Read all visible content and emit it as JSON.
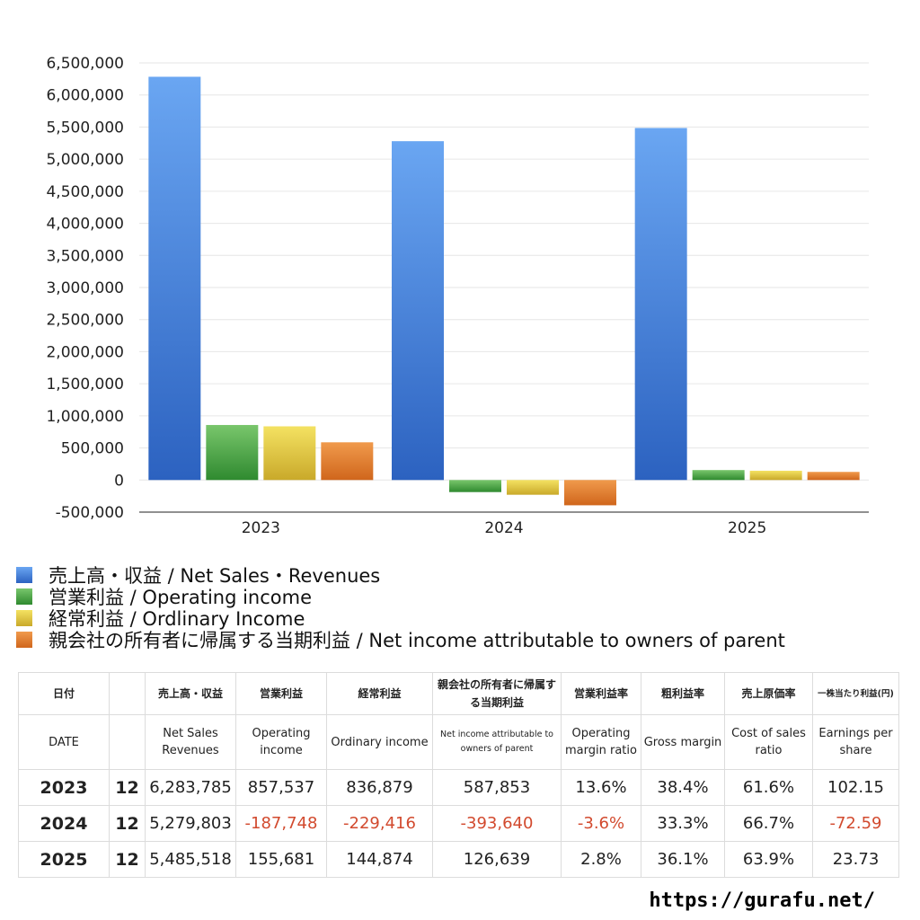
{
  "chart_data": {
    "type": "bar",
    "categories": [
      "2023",
      "2024",
      "2025"
    ],
    "series": [
      {
        "name": "売上高・収益 / Net Sales・Revenues",
        "color": "#3a78d8",
        "values": [
          6283785,
          5279803,
          5485518
        ]
      },
      {
        "name": "営業利益 / Operating income",
        "color": "#3e9b3a",
        "values": [
          857537,
          -187748,
          155681
        ]
      },
      {
        "name": "経常利益 / Ordlinary Income",
        "color": "#e2c53a",
        "values": [
          836879,
          -229416,
          144874
        ]
      },
      {
        "name": "親会社の所有者に帰属する当期利益 / Net income attributable to owners of parent",
        "color": "#e07a2a",
        "values": [
          587853,
          -393640,
          126639
        ]
      }
    ],
    "ylim": [
      -500000,
      6500000
    ],
    "yticks": [
      6500000,
      6000000,
      5500000,
      5000000,
      4500000,
      4000000,
      3500000,
      3000000,
      2500000,
      2000000,
      1500000,
      1000000,
      500000,
      0,
      -500000
    ],
    "ytick_labels": [
      "6,500,000",
      "6,000,000",
      "5,500,000",
      "5,000,000",
      "4,500,000",
      "4,000,000",
      "3,500,000",
      "3,000,000",
      "2,500,000",
      "2,000,000",
      "1,500,000",
      "1,000,000",
      "500,000",
      "0",
      "-500,000"
    ],
    "grid": true,
    "legend": "bottom"
  },
  "table": {
    "header_ja": [
      "日付",
      "",
      "売上高・収益",
      "営業利益",
      "経常利益",
      "親会社の所有者に帰属する当期利益",
      "営業利益率",
      "粗利益率",
      "売上原価率",
      "一株当たり利益(円)"
    ],
    "header_en": [
      "DATE",
      "",
      "Net Sales Revenues",
      "Operating income",
      "Ordinary income",
      "Net income attributable to owners of parent",
      "Operating margin ratio",
      "Gross margin",
      "Cost of sales ratio",
      "Earnings per share"
    ],
    "rows": [
      {
        "year": "2023",
        "month": "12",
        "cells": [
          "6,283,785",
          "857,537",
          "836,879",
          "587,853",
          "13.6%",
          "38.4%",
          "61.6%",
          "102.15"
        ]
      },
      {
        "year": "2024",
        "month": "12",
        "cells": [
          "5,279,803",
          "-187,748",
          "-229,416",
          "-393,640",
          "-3.6%",
          "33.3%",
          "66.7%",
          "-72.59"
        ]
      },
      {
        "year": "2025",
        "month": "12",
        "cells": [
          "5,485,518",
          "155,681",
          "144,874",
          "126,639",
          "2.8%",
          "36.1%",
          "63.9%",
          "23.73"
        ]
      }
    ]
  },
  "watermark": "https://gurafu.net/"
}
